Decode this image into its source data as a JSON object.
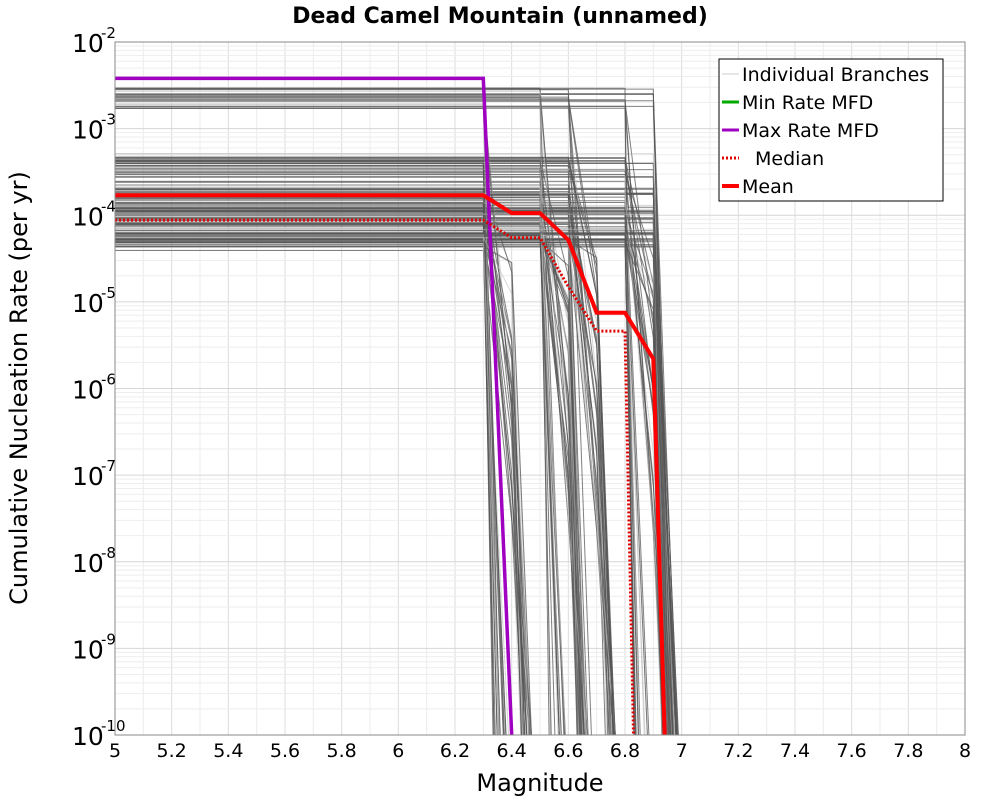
{
  "chart_data": {
    "type": "line",
    "title": "Dead Camel Mountain (unnamed)",
    "xlabel": "Magnitude",
    "ylabel": "Cumulative Nucleation Rate (per yr)",
    "xlim": [
      5,
      8
    ],
    "ylim": [
      1e-10,
      0.01
    ],
    "yscale": "log",
    "grid": true,
    "legend_position": "top-right",
    "x_ticks": [
      "5",
      "5.2",
      "5.4",
      "5.6",
      "5.8",
      "6",
      "6.2",
      "6.4",
      "6.6",
      "6.8",
      "7",
      "7.2",
      "7.4",
      "7.6",
      "7.8",
      "8"
    ],
    "y_ticks": [
      {
        "base": "10",
        "exp": "-10"
      },
      {
        "base": "10",
        "exp": "-9"
      },
      {
        "base": "10",
        "exp": "-8"
      },
      {
        "base": "10",
        "exp": "-7"
      },
      {
        "base": "10",
        "exp": "-6"
      },
      {
        "base": "10",
        "exp": "-5"
      },
      {
        "base": "10",
        "exp": "-4"
      },
      {
        "base": "10",
        "exp": "-3"
      },
      {
        "base": "10",
        "exp": "-2"
      }
    ],
    "legend": [
      {
        "label": "Individual Branches",
        "color": "#cccccc",
        "style": "solid-thin"
      },
      {
        "label": "Min Rate MFD",
        "color": "#00aa00",
        "style": "solid"
      },
      {
        "label": "Max Rate MFD",
        "color": "#a000c0",
        "style": "solid"
      },
      {
        "label": "Median",
        "color": "#e00000",
        "style": "dotted"
      },
      {
        "label": "Mean",
        "color": "#ff0000",
        "style": "solid-thick"
      }
    ],
    "series": [
      {
        "name": "Max Rate MFD",
        "color": "#a000c0",
        "x": [
          5.0,
          6.3,
          6.4
        ],
        "y": [
          0.0038,
          0.0038,
          1e-10
        ]
      },
      {
        "name": "Median",
        "color": "#e00000",
        "x": [
          5.0,
          6.3,
          6.4,
          6.5,
          6.6,
          6.7,
          6.8,
          6.83
        ],
        "y": [
          8.8e-05,
          8.8e-05,
          5.5e-05,
          5.5e-05,
          1.5e-05,
          4.6e-06,
          4.6e-06,
          1e-10
        ]
      },
      {
        "name": "Mean",
        "color": "#ff0000",
        "x": [
          5.0,
          6.3,
          6.4,
          6.5,
          6.6,
          6.7,
          6.8,
          6.9,
          6.94
        ],
        "y": [
          0.00017,
          0.00017,
          0.000106,
          0.000106,
          5.2e-05,
          7.5e-06,
          7.5e-06,
          2.2e-06,
          1e-10
        ]
      }
    ],
    "branches": {
      "color": "#555555",
      "note_hidden": false,
      "flat_rates": [
        0.0026,
        0.0024,
        0.0022,
        0.0018,
        0.00045,
        0.0004,
        0.00035,
        0.0003,
        0.00026,
        0.00023,
        0.0002,
        0.00018,
        0.00016,
        0.00014,
        0.00012,
        0.00011,
        0.0001,
        9e-05,
        8e-05,
        7e-05,
        6.5e-05,
        6e-05,
        5.5e-05,
        5e-05,
        4.5e-05,
        4e-05
      ],
      "cutoff_magnitudes": [
        6.3,
        6.5,
        6.6,
        6.8,
        6.9
      ],
      "tail_rates": [
        2.5e-05,
        1.5e-05,
        1e-05,
        6e-06,
        3e-06,
        1e-06,
        5e-07,
        2e-07,
        8e-08,
        3e-08
      ]
    }
  }
}
